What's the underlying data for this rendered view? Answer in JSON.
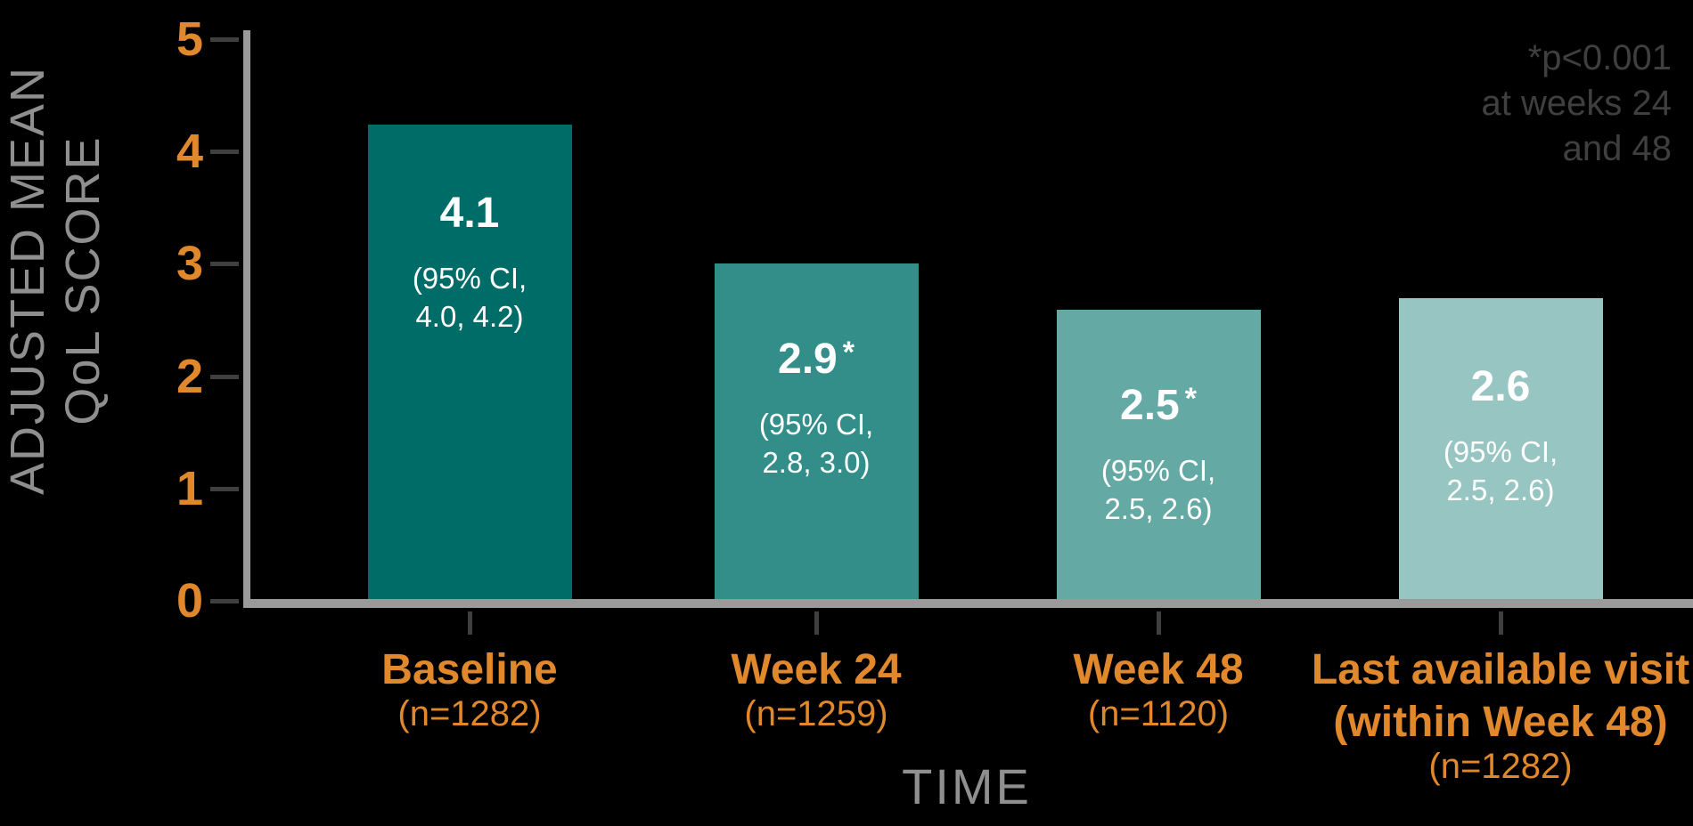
{
  "chart_data": {
    "type": "bar",
    "title": "",
    "xlabel": "TIME",
    "ylabel": "ADJUSTED MEAN QoL SCORE",
    "ylabel_lines": [
      "ADJUSTED MEAN",
      "QoL SCORE"
    ],
    "ylim": [
      0,
      5
    ],
    "yticks": [
      "5",
      "4",
      "3",
      "2",
      "1",
      "0"
    ],
    "grid": "off",
    "legend": "none",
    "annotation_lines": [
      "*p<0.001",
      "at weeks 24",
      "and 48"
    ],
    "bars": [
      {
        "category": "Baseline",
        "n_label": "(n=1282)",
        "value": 4.1,
        "value_label": "4.1",
        "asterisk": false,
        "ci_lines": [
          "(95% CI,",
          "4.0, 4.2)"
        ],
        "color": "#006c67"
      },
      {
        "category": "Week 24",
        "n_label": "(n=1259)",
        "value": 2.9,
        "value_label": "2.9",
        "asterisk": true,
        "ci_lines": [
          "(95% CI,",
          "2.8, 3.0)"
        ],
        "color": "#338e8a"
      },
      {
        "category": "Week 48",
        "n_label": "(n=1120)",
        "value": 2.5,
        "value_label": "2.5",
        "asterisk": true,
        "ci_lines": [
          "(95% CI,",
          "2.5, 2.6)"
        ],
        "color": "#65a9a4"
      },
      {
        "category": "Last available visit",
        "category_line2": "(within Week 48)",
        "n_label": "(n=1282)",
        "value": 2.6,
        "value_label": "2.6",
        "asterisk": false,
        "ci_lines": [
          "(95% CI,",
          "2.5, 2.6)"
        ],
        "color": "#97c6c2"
      }
    ]
  },
  "colors": {
    "background": "#000000",
    "orange": "#e0882b",
    "axis_gray": "#9a9a9a",
    "text_gray": "#8f8f8f",
    "dark_gray": "#3f3f3f",
    "bar_text": "#ffffff"
  }
}
